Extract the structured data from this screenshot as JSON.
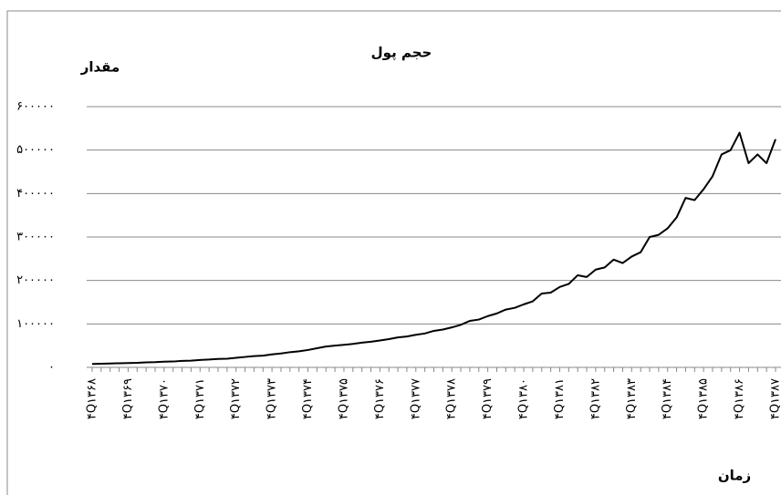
{
  "chart_data": {
    "type": "line",
    "title": "حجم پول",
    "y_label": "مقدار",
    "x_label": "زمان",
    "categories": [
      "۴Q۱۳۶۸",
      null,
      null,
      null,
      "۴Q۱۳۶۹",
      null,
      null,
      null,
      "۴Q۱۳۷۰",
      null,
      null,
      null,
      "۴Q۱۳۷۱",
      null,
      null,
      null,
      "۴Q۱۳۷۲",
      null,
      null,
      null,
      "۴Q۱۳۷۳",
      null,
      null,
      null,
      "۴Q۱۳۷۴",
      null,
      null,
      null,
      "۴Q۱۳۷۵",
      null,
      null,
      null,
      "۴Q۱۳۷۶",
      null,
      null,
      null,
      "۴Q۱۳۷۷",
      null,
      null,
      null,
      "۴Q۱۳۷۸",
      null,
      null,
      null,
      "۴Q۱۳۷۹",
      null,
      null,
      null,
      "۴Q۱۳۸۰",
      null,
      null,
      null,
      "۴Q۱۳۸۱",
      null,
      null,
      null,
      "۴Q۱۳۸۲",
      null,
      null,
      null,
      "۴Q۱۳۸۳",
      null,
      null,
      null,
      "۴Q۱۳۸۴",
      null,
      null,
      null,
      "۴Q۱۳۸۵",
      null,
      null,
      null,
      "۴Q۱۳۸۶",
      null,
      null,
      null,
      "۴Q۱۳۸۷"
    ],
    "values": [
      8000,
      8500,
      9000,
      9500,
      10000,
      10500,
      11500,
      12000,
      13000,
      13500,
      15000,
      15500,
      17000,
      18000,
      19500,
      20000,
      22000,
      24000,
      26000,
      27000,
      30000,
      32000,
      35000,
      37000,
      40000,
      44000,
      48000,
      50000,
      52000,
      54000,
      57000,
      59000,
      62000,
      65000,
      69000,
      71000,
      75000,
      78000,
      84000,
      87000,
      92000,
      98000,
      107000,
      110000,
      118000,
      124000,
      133000,
      137000,
      145000,
      152000,
      170000,
      172000,
      185000,
      192000,
      212000,
      208000,
      225000,
      230000,
      248000,
      240000,
      255000,
      265000,
      300000,
      305000,
      320000,
      345000,
      390000,
      385000,
      410000,
      440000,
      490000,
      500000,
      540000,
      470000,
      490000,
      470000,
      525000
    ],
    "color": "#000000",
    "ylim": [
      0,
      600000
    ],
    "yticks": [
      {
        "value": 0,
        "label": "۰"
      },
      {
        "value": 100000,
        "label": "۱۰۰۰۰۰"
      },
      {
        "value": 200000,
        "label": "۲۰۰۰۰۰"
      },
      {
        "value": 300000,
        "label": "۳۰۰۰۰۰"
      },
      {
        "value": 400000,
        "label": "۴۰۰۰۰۰"
      },
      {
        "value": 500000,
        "label": "۵۰۰۰۰۰"
      },
      {
        "value": 600000,
        "label": "۶۰۰۰۰۰"
      }
    ],
    "grid": true
  }
}
